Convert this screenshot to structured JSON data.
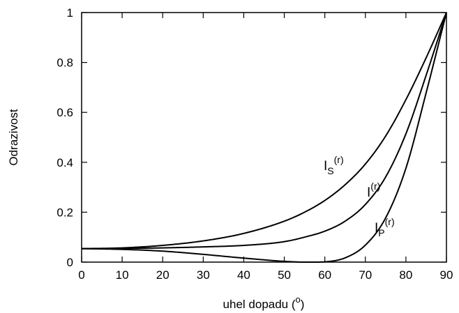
{
  "chart_data": {
    "type": "line",
    "title": "",
    "xlabel": "uhel dopadu (",
    "xlabel_sup": "o",
    "xlabel_close": ")",
    "ylabel": "Odrazivost",
    "xlim": [
      0,
      90
    ],
    "ylim": [
      0,
      1
    ],
    "grid": false,
    "xticks": [
      0,
      10,
      20,
      30,
      40,
      50,
      60,
      70,
      80,
      90
    ],
    "yticks": [
      0,
      0.2,
      0.4,
      0.6,
      0.8,
      1
    ],
    "ytick_labels": [
      "0",
      "0.2",
      "0.4",
      "0.6",
      "0.8",
      "1"
    ],
    "series": [
      {
        "label_base": "I",
        "label_sub": "S",
        "label_sup": "(r)",
        "x": [
          0,
          10,
          20,
          30,
          40,
          50,
          55,
          60,
          65,
          70,
          75,
          80,
          85,
          90
        ],
        "y": [
          0.054,
          0.057,
          0.067,
          0.085,
          0.115,
          0.164,
          0.2,
          0.247,
          0.31,
          0.393,
          0.505,
          0.651,
          0.819,
          1.0
        ]
      },
      {
        "label_base": "I",
        "label_sub": "",
        "label_sup": "(r)",
        "x": [
          0,
          10,
          20,
          30,
          40,
          50,
          55,
          60,
          65,
          70,
          75,
          80,
          85,
          90
        ],
        "y": [
          0.054,
          0.055,
          0.057,
          0.061,
          0.067,
          0.082,
          0.1,
          0.124,
          0.164,
          0.231,
          0.341,
          0.514,
          0.749,
          1.0
        ]
      },
      {
        "label_base": "I",
        "label_sub": "P",
        "label_sup": "(r)",
        "x": [
          0,
          10,
          20,
          30,
          40,
          50,
          55,
          57,
          60,
          65,
          70,
          75,
          80,
          85,
          90
        ],
        "y": [
          0.054,
          0.051,
          0.044,
          0.031,
          0.016,
          0.003,
          0.0,
          0.0,
          0.0012,
          0.017,
          0.068,
          0.177,
          0.376,
          0.679,
          1.0
        ]
      }
    ]
  }
}
